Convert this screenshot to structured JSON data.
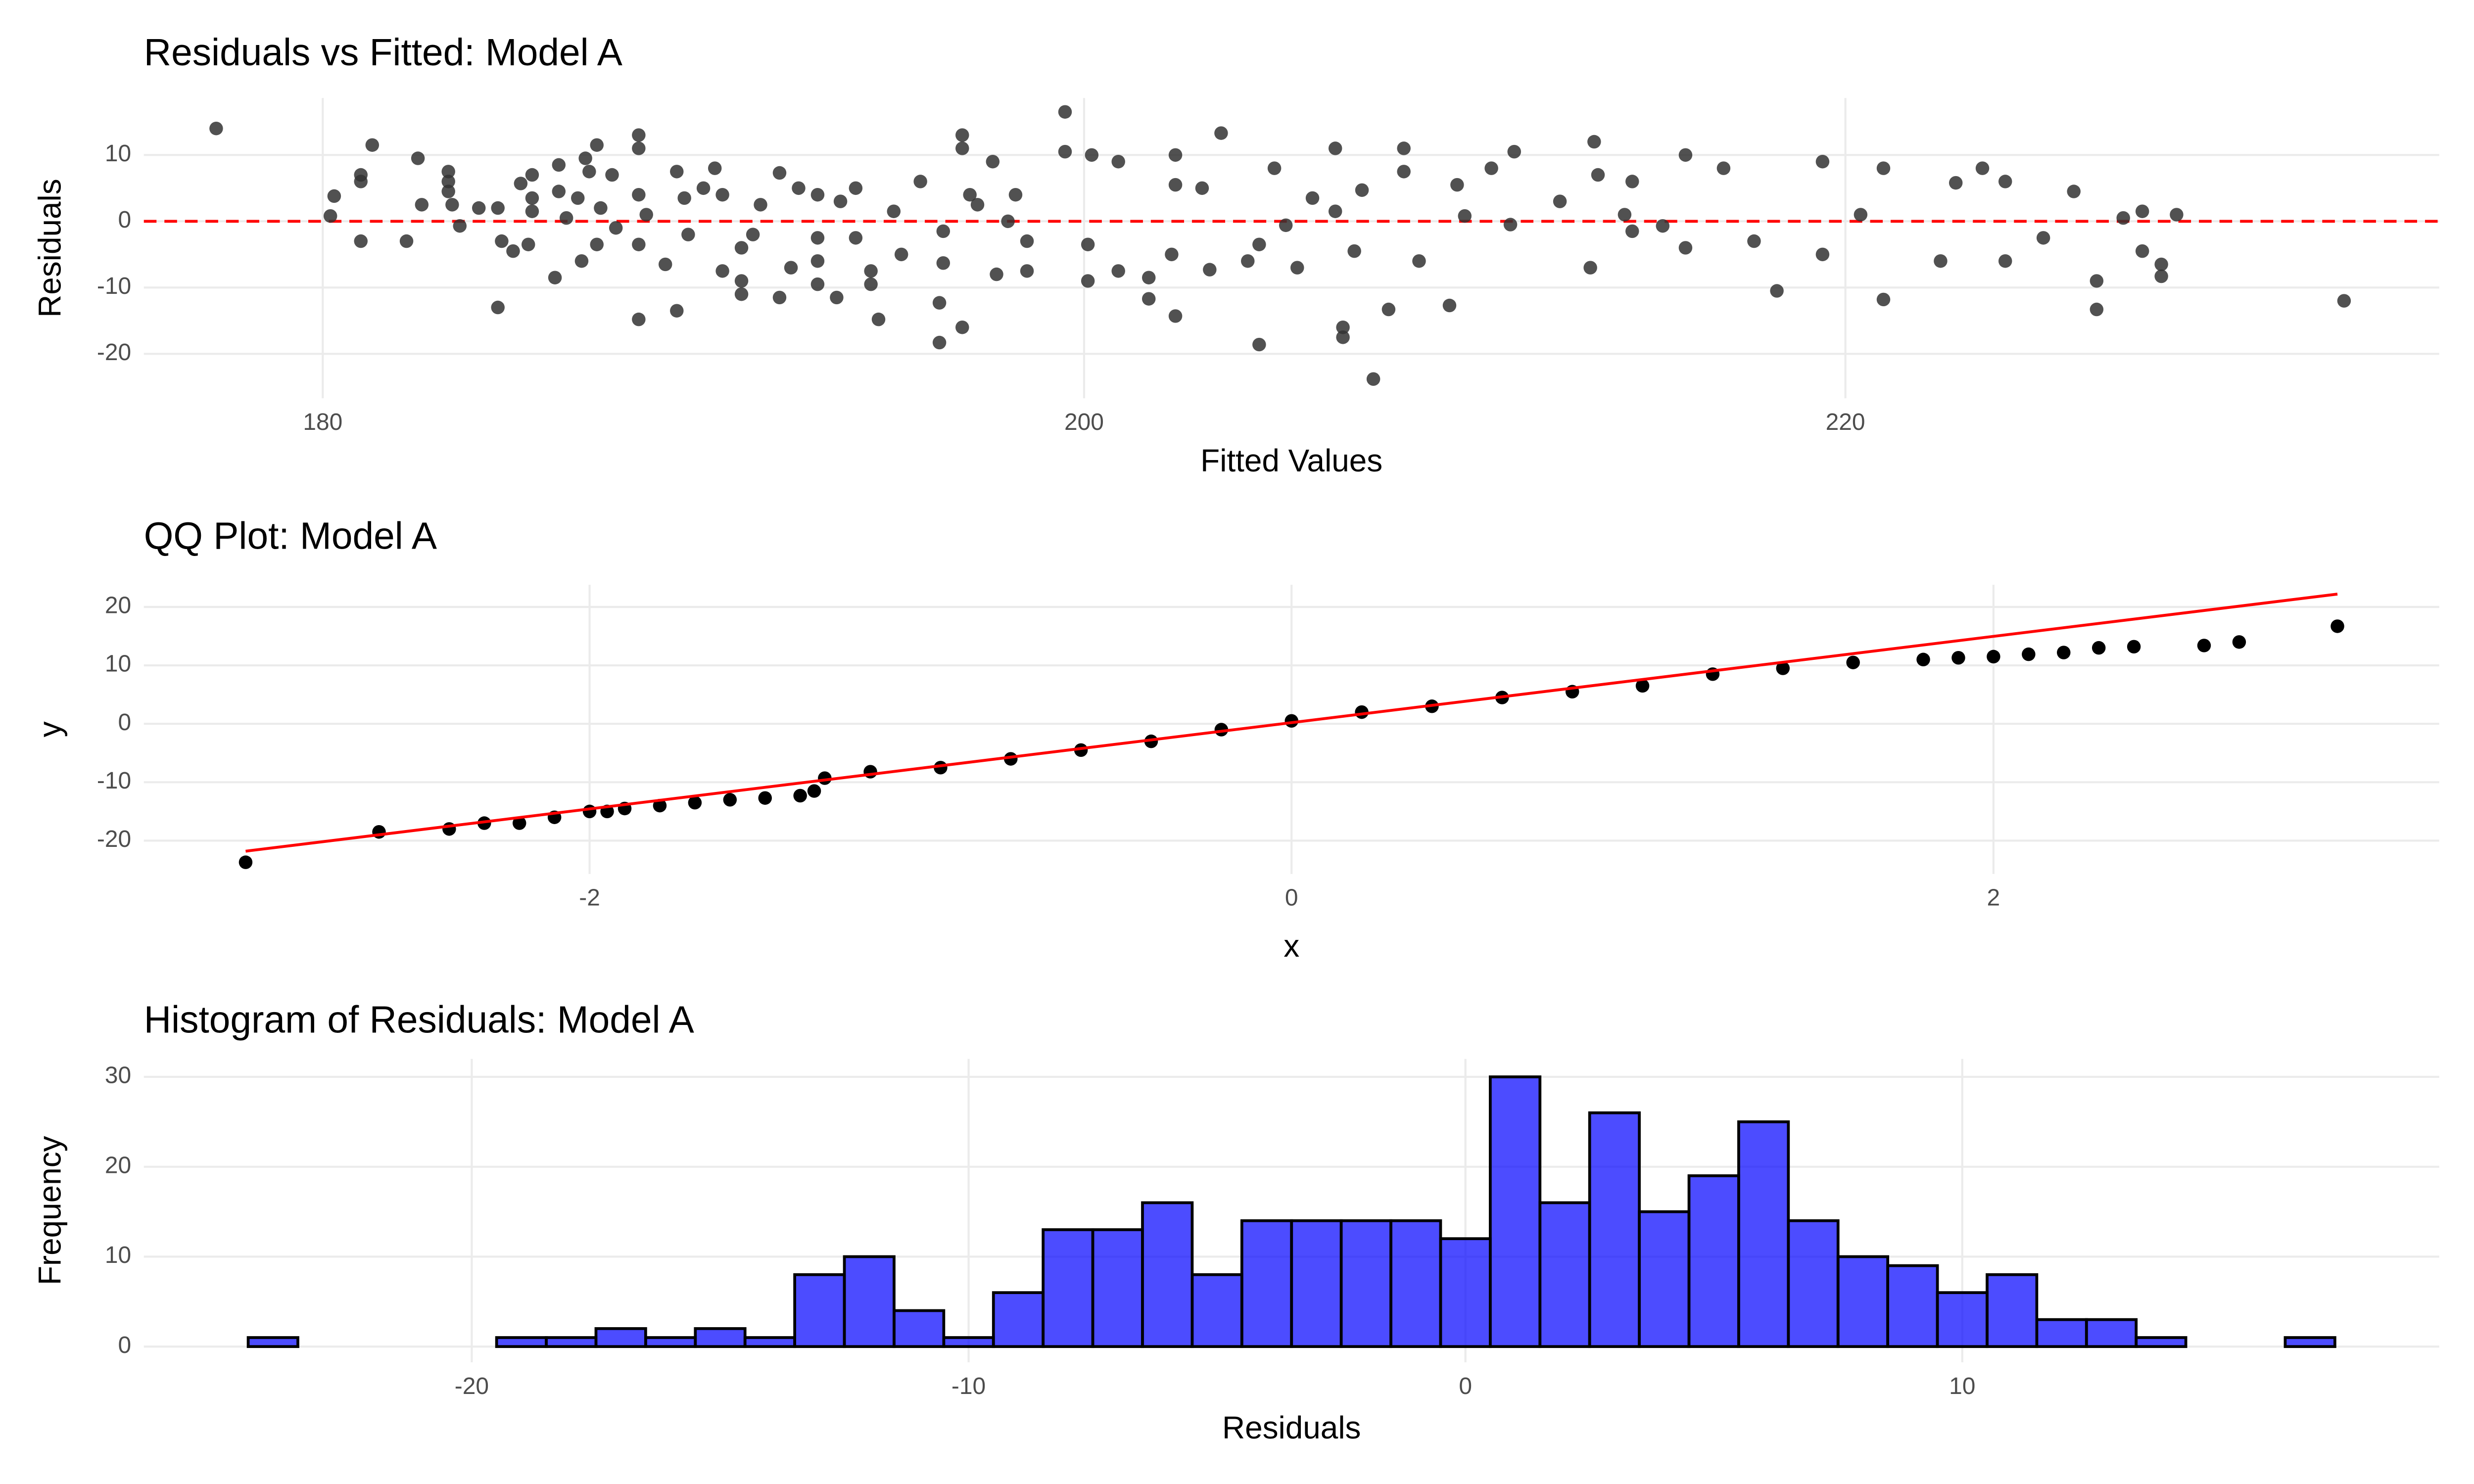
{
  "chart_data": [
    {
      "type": "scatter",
      "title": "Residuals vs Fitted: Model A",
      "x_label": "Fitted Values",
      "y_label": "Residuals",
      "x": [
        177.2,
        180.3,
        180.2,
        181,
        181,
        181,
        181.3,
        182.2,
        182.5,
        182.6,
        183.3,
        183.3,
        183.3,
        183.4,
        183.6,
        184.1,
        184.6,
        184.6,
        184.7,
        185,
        185.2,
        185.4,
        185.5,
        185.5,
        185.5,
        186.1,
        186.2,
        186.2,
        186.4,
        186.7,
        186.8,
        186.9,
        187,
        187.2,
        187.2,
        187.3,
        187.6,
        187.7,
        188.3,
        188.3,
        188.3,
        188.3,
        188.3,
        188.5,
        189,
        189.3,
        189.3,
        189.5,
        189.6,
        190,
        190.3,
        190.5,
        190.5,
        191,
        191,
        191,
        191.3,
        191.5,
        192,
        192,
        192.3,
        192.5,
        193,
        193,
        193,
        193,
        193.5,
        193.6,
        194,
        194,
        194.4,
        194.4,
        194.6,
        195,
        195.2,
        195.7,
        196.2,
        196.2,
        196.3,
        196.3,
        196.8,
        196.8,
        196.8,
        197,
        197.2,
        197.6,
        197.7,
        198,
        198.2,
        198.5,
        198.5,
        199.5,
        199.5,
        200.1,
        200.1,
        200.2,
        200.9,
        200.9,
        201.7,
        201.7,
        202.3,
        202.4,
        202.4,
        202.4,
        203.1,
        203.3,
        203.6,
        204.3,
        204.6,
        204.6,
        205,
        205.3,
        205.6,
        206,
        206.6,
        206.6,
        206.8,
        206.8,
        207.1,
        207.3,
        207.6,
        208,
        208.4,
        208.4,
        208.8,
        209.6,
        209.8,
        210,
        210.7,
        211.2,
        211.3,
        212.5,
        213.3,
        213.4,
        213.5,
        214.2,
        214.4,
        214.4,
        215.2,
        215.8,
        215.8,
        216.8,
        217.6,
        218.2,
        219.4,
        219.4,
        220.4,
        221,
        221,
        222.5,
        222.9,
        223.6,
        224.2,
        224.2,
        225.2,
        226,
        226.6,
        226.6,
        227.3,
        227.8,
        227.8,
        228.3,
        228.3,
        228.7,
        233.1
      ],
      "values": [
        14,
        3.8,
        0.8,
        7,
        6,
        -3,
        11.5,
        -3,
        9.5,
        2.5,
        7.5,
        6,
        4.5,
        2.5,
        -0.7,
        2,
        -13,
        2,
        -3,
        -4.5,
        5.7,
        -3.5,
        7,
        3.5,
        1.5,
        -8.5,
        8.5,
        4.5,
        0.5,
        3.5,
        -6,
        9.5,
        7.5,
        11.5,
        -3.5,
        2,
        7,
        -1,
        -14.8,
        13,
        11,
        4,
        -3.5,
        1,
        -6.5,
        -13.5,
        7.5,
        3.5,
        -2,
        5,
        8,
        -7.5,
        4,
        -4,
        -9,
        -11,
        -2,
        2.5,
        -11.5,
        7.3,
        -7,
        5,
        -2.5,
        -6,
        -9.5,
        4,
        -11.5,
        3,
        -2.5,
        5,
        -7.5,
        -9.5,
        -14.8,
        1.5,
        -5,
        6,
        -18.3,
        -12.3,
        -6.3,
        -1.5,
        -16,
        13,
        11,
        4,
        2.5,
        9,
        -8,
        0,
        4,
        -3,
        -7.5,
        16.5,
        10.5,
        -3.5,
        -9,
        10,
        9,
        -7.5,
        -8.5,
        -11.7,
        -5,
        -14.3,
        10,
        5.5,
        5,
        -7.3,
        13.3,
        -6,
        -3.5,
        -18.6,
        8,
        -0.6,
        -7,
        3.5,
        1.5,
        11,
        -16,
        -17.5,
        -4.5,
        4.7,
        -23.8,
        -13.3,
        11,
        7.5,
        -6,
        -12.7,
        5.5,
        0.8,
        8,
        -0.5,
        10.5,
        3,
        -7,
        12,
        7,
        1,
        -1.5,
        6,
        -0.7,
        10,
        -4,
        8,
        -3,
        -10.5,
        9,
        -5,
        1,
        -11.8,
        8,
        -6,
        5.8,
        8,
        -6,
        6,
        -2.5,
        4.5,
        -9,
        -13.3,
        0.5,
        1.5,
        -4.5,
        -8.3,
        -6.5,
        1,
        -12
      ],
      "color": "#333333",
      "hline": 0,
      "hline_color": "#ff0000",
      "xlim": [
        175.3,
        235.6
      ],
      "xticks": [
        180,
        200,
        220
      ],
      "ylim": [
        -26.7,
        18.6
      ],
      "yticks": [
        -20,
        -10,
        0,
        10
      ],
      "grid": true
    },
    {
      "type": "scatter",
      "title": "QQ Plot: Model A",
      "x_label": "x",
      "y_label": "y",
      "x": [
        -2.98,
        -2.6,
        -2.4,
        -2.3,
        -2.2,
        -2.1,
        -2.0,
        -1.95,
        -1.9,
        -1.8,
        -1.7,
        -1.6,
        -1.5,
        -1.4,
        -1.36,
        -1.33,
        -1.2,
        -1.0,
        -0.8,
        -0.6,
        -0.4,
        -0.2,
        0,
        0.2,
        0.4,
        0.6,
        0.8,
        1.0,
        1.2,
        1.4,
        1.6,
        1.8,
        1.9,
        2.0,
        2.1,
        2.2,
        2.3,
        2.4,
        2.6,
        2.7,
        2.98
      ],
      "values": [
        -23.7,
        -18.5,
        -18,
        -17,
        -17,
        -16,
        -15,
        -15,
        -14.5,
        -14,
        -13.5,
        -13,
        -12.7,
        -12.3,
        -11.5,
        -9.3,
        -8.2,
        -7.5,
        -6,
        -4.5,
        -3,
        -1,
        0.5,
        2,
        3,
        4.5,
        5.5,
        6.5,
        8.5,
        9.5,
        10.5,
        11,
        11.3,
        11.5,
        11.9,
        12.2,
        13,
        13.2,
        13.4,
        14,
        16.7
      ],
      "color": "#000000",
      "ref_line": {
        "x": [
          -2.98,
          2.98
        ],
        "y": [
          -21.8,
          22.2
        ]
      },
      "ref_color": "#ff0000",
      "xlim": [
        -3.27,
        3.27
      ],
      "xticks": [
        -2,
        0,
        2
      ],
      "ylim": [
        -25.7,
        23.8
      ],
      "yticks": [
        -20,
        -10,
        0,
        10,
        20
      ],
      "grid": true
    },
    {
      "type": "histogram",
      "title": "Histogram of Residuals: Model A",
      "x_label": "Residuals",
      "y_label": "Frequency",
      "bins": [
        -24.5,
        -23.5,
        -22.5,
        -21.5,
        -20.5,
        -19.5,
        -18.5,
        -17.5,
        -16.5,
        -15.5,
        -14.5,
        -13.5,
        -12.5,
        -11.5,
        -10.5,
        -9.5,
        -8.5,
        -7.5,
        -6.5,
        -5.5,
        -4.5,
        -3.5,
        -2.5,
        -1.5,
        -0.5,
        0.5,
        1.5,
        2.5,
        3.5,
        4.5,
        5.5,
        6.5,
        7.5,
        8.5,
        9.5,
        10.5,
        11.5,
        12.5,
        13.5,
        14.5,
        15.5,
        16.5,
        17.5
      ],
      "values": [
        1,
        0,
        0,
        0,
        0,
        1,
        1,
        2,
        1,
        2,
        1,
        8,
        10,
        4,
        1,
        6,
        13,
        13,
        16,
        8,
        14,
        14,
        14,
        14,
        12,
        30,
        16,
        26,
        15,
        19,
        25,
        14,
        10,
        9,
        6,
        8,
        3,
        3,
        1,
        0,
        0,
        1
      ],
      "color": "#0000ff",
      "xlim": [
        -26.6,
        19.6
      ],
      "xticks": [
        -20,
        -10,
        0,
        10
      ],
      "ylim": [
        -1.75,
        32
      ],
      "yticks": [
        0,
        10,
        20,
        30
      ],
      "grid": true
    }
  ]
}
